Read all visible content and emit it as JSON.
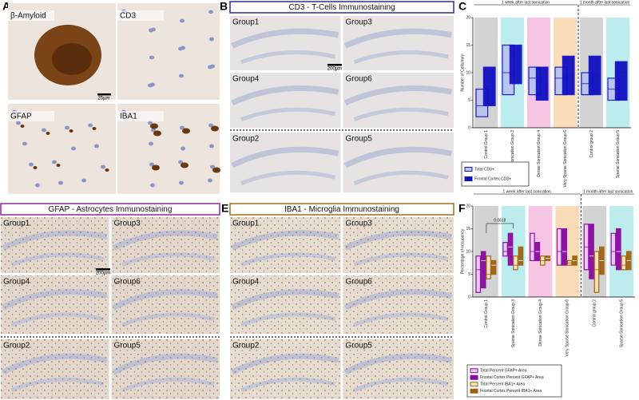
{
  "panel_labels": [
    "A",
    "B",
    "C",
    "D",
    "E",
    "F"
  ],
  "panel_a": {
    "images": [
      "β-Amyloid",
      "CD3",
      "GFAP",
      "IBA1"
    ],
    "scale_bar": "25µm"
  },
  "panel_b": {
    "title": "CD3 - T-Cells Immunostaining",
    "groups": [
      "Group1",
      "Group3",
      "Group4",
      "Group6",
      "Group2",
      "Group5"
    ],
    "scale_bar": "200µm"
  },
  "panel_d": {
    "title": "GFAP - Astrocytes Immunostaining",
    "groups": [
      "Group1",
      "Group3",
      "Group4",
      "Group6",
      "Group2",
      "Group5"
    ],
    "scale_bar": "200µm"
  },
  "panel_e": {
    "title": "IBA1 - Microglia Immunostaining",
    "groups": [
      "Group1",
      "Group3",
      "Group4",
      "Group6",
      "Group2",
      "Group5"
    ]
  },
  "chart_data": [
    {
      "type": "box",
      "y_label": "Number of Cells/mm²",
      "periods": [
        "1 week after last sonication",
        "1 month after last sonication"
      ],
      "categories": [
        "Control Group 1",
        "Sparse Sonication Group 3",
        "Dense Sonication Group 4",
        "Very Sparse Sonication Group 6",
        "Control group 2",
        "Sparse Sonication Group 5"
      ],
      "band_colors": [
        "#d3d3d3",
        "#bdecef",
        "#f6c5e4",
        "#fbdcb9",
        "#d3d3d3",
        "#bdecef"
      ],
      "separator_after": 3,
      "ylim": [
        0,
        20
      ],
      "yticks": [
        0,
        5,
        10,
        15,
        20
      ],
      "series": [
        {
          "name": "Total CD3+",
          "color": "#1515c8",
          "fill": "#b9c3ee",
          "low": [
            2,
            6,
            6,
            6,
            6,
            5
          ],
          "high": [
            7,
            15,
            11,
            11,
            10,
            9
          ],
          "median": [
            4,
            10,
            9,
            9,
            8,
            7
          ]
        },
        {
          "name": "Frontal Cortex CD3+",
          "color": "#1515c8",
          "fill": "#1010c0",
          "low": [
            4,
            8,
            5,
            6,
            6,
            5
          ],
          "high": [
            11,
            15,
            11,
            13,
            13,
            12
          ],
          "median": [
            7.5,
            13,
            9,
            9.5,
            9.5,
            10
          ]
        }
      ]
    },
    {
      "type": "box",
      "y_label": "Percentage of occupancy",
      "periods": [
        "1 week after last sonication",
        "1 month after last sonication"
      ],
      "annotation": "0.0618",
      "categories": [
        "Control Group 1",
        "Sparse Sonication Group 3",
        "Dense Sonication Group 4",
        "Very Sparse Sonication Group 6",
        "Control group 2",
        "Sparse Sonication Group 5"
      ],
      "band_colors": [
        "#d3d3d3",
        "#bdecef",
        "#f6c5e4",
        "#fbdcb9",
        "#d3d3d3",
        "#bdecef"
      ],
      "separator_after": 3,
      "ylim": [
        0,
        20
      ],
      "yticks": [
        0,
        5,
        10,
        15,
        20
      ],
      "series": [
        {
          "name": "Total Percent GFAP+ Area",
          "color": "#8a0aa0",
          "fill": "#ecc8f2",
          "low": [
            1,
            9,
            8,
            7,
            6,
            7
          ],
          "high": [
            9,
            12,
            14,
            15,
            16,
            14
          ],
          "median": [
            6,
            10,
            10,
            10,
            11,
            10
          ]
        },
        {
          "name": "Frontal Cortex Percent GFAP+ Area",
          "color": "#8a0aa0",
          "fill": "#8a0aa0",
          "low": [
            2,
            7,
            8,
            7,
            4,
            6
          ],
          "high": [
            10,
            14,
            12,
            15,
            16,
            15
          ],
          "median": [
            8,
            11,
            10,
            10,
            9,
            10
          ]
        },
        {
          "name": "Total Percent IBA1+ Area",
          "color": "#a0620f",
          "fill": "#f3e2c2",
          "low": [
            4,
            6,
            7,
            7,
            1,
            6
          ],
          "high": [
            9,
            9,
            9,
            8,
            10,
            9
          ],
          "median": [
            5,
            7,
            8,
            7.5,
            6,
            7
          ]
        },
        {
          "name": "Frontal Cortex Percent IBA1+ Area",
          "color": "#a0620f",
          "fill": "#a0620f",
          "low": [
            5,
            7,
            8,
            7,
            5,
            6
          ],
          "high": [
            8,
            11,
            9,
            9,
            11,
            10
          ],
          "median": [
            7,
            8,
            8.5,
            8,
            8,
            8
          ]
        }
      ]
    }
  ]
}
